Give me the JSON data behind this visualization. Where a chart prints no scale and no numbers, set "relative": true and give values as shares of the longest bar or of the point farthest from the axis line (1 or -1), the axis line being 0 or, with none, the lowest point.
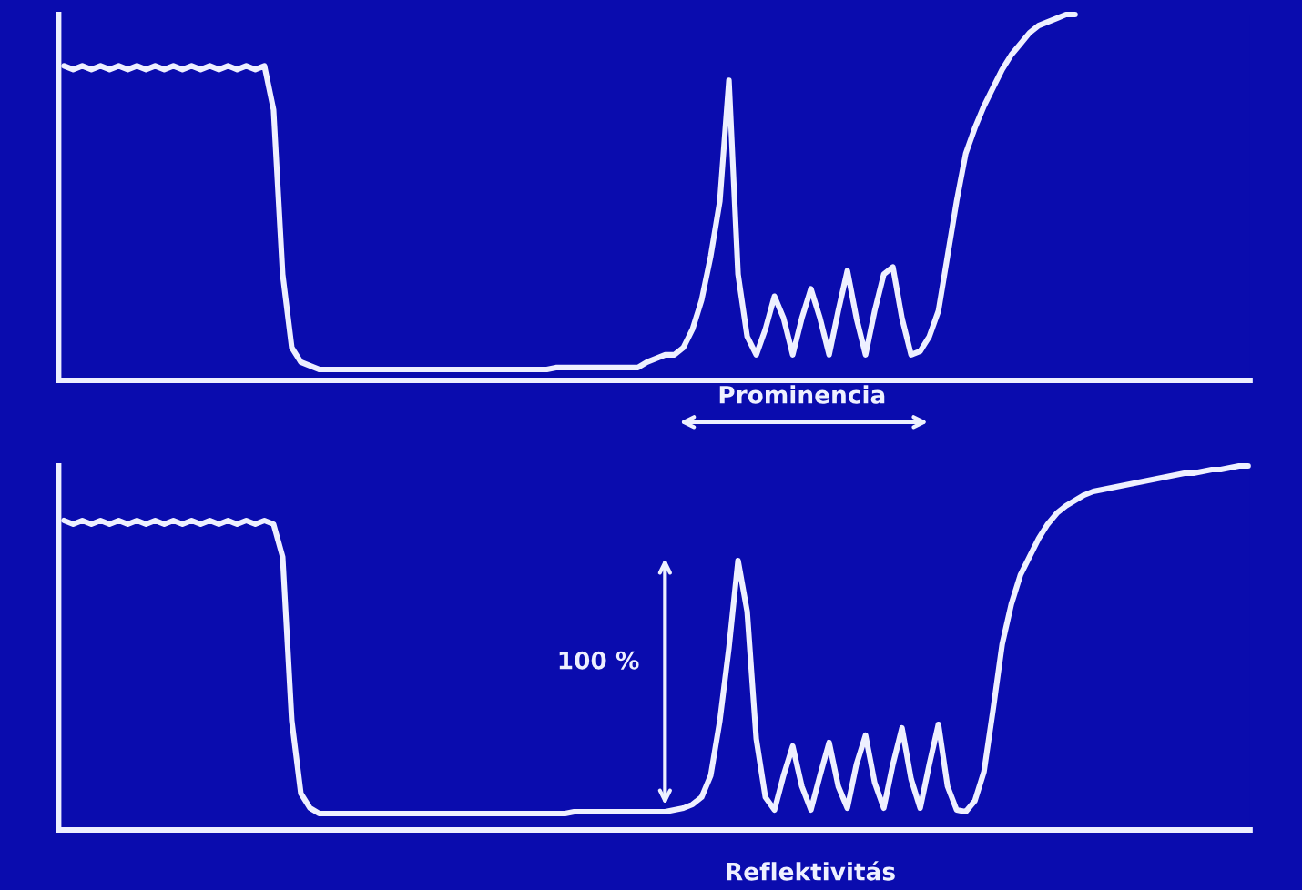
{
  "chart_data": [
    {
      "type": "line",
      "relative": true,
      "tick_labels": false,
      "categories": [
        null,
        null,
        null,
        null,
        null,
        null,
        null,
        null,
        null,
        null,
        null,
        null,
        null,
        null,
        null,
        null,
        null,
        null,
        null,
        null,
        null,
        null,
        null,
        null,
        null,
        null,
        null,
        null,
        null,
        null,
        null,
        null,
        null,
        null,
        null,
        null,
        null,
        null,
        null,
        null,
        null,
        null,
        null,
        null,
        null,
        null,
        null,
        null,
        null,
        null,
        null,
        null,
        null,
        null,
        null,
        null,
        null,
        null,
        null,
        null,
        null,
        null,
        null,
        null,
        null,
        null,
        null,
        null,
        null,
        null,
        null,
        null,
        null,
        null,
        null,
        null,
        null,
        null,
        null,
        null,
        null,
        null,
        null,
        null,
        null,
        null,
        null,
        null,
        null,
        null,
        null,
        null,
        null,
        null,
        null,
        null,
        null,
        null,
        null,
        null,
        null,
        null,
        null,
        null,
        null,
        null,
        null,
        null,
        null,
        null,
        null,
        null,
        null,
        null,
        null,
        null,
        null,
        null,
        null,
        null,
        null,
        null,
        null,
        null,
        null,
        null,
        null,
        null,
        null,
        null,
        null
      ],
      "series": [
        {
          "color": "#eef0ff",
          "values": [
            0.86,
            0.85,
            0.86,
            0.85,
            0.86,
            0.85,
            0.86,
            0.85,
            0.86,
            0.85,
            0.86,
            0.85,
            0.86,
            0.85,
            0.86,
            0.85,
            0.86,
            0.85,
            0.86,
            0.85,
            0.86,
            0.85,
            0.86,
            0.74,
            0.29,
            0.09,
            0.05,
            0.04,
            0.03,
            0.03,
            0.03,
            0.03,
            0.03,
            0.03,
            0.03,
            0.03,
            0.03,
            0.03,
            0.03,
            0.03,
            0.03,
            0.03,
            0.03,
            0.03,
            0.03,
            0.03,
            0.03,
            0.03,
            0.03,
            0.03,
            0.03,
            0.03,
            0.03,
            0.03,
            0.035,
            0.035,
            0.035,
            0.035,
            0.035,
            0.035,
            0.035,
            0.035,
            0.035,
            0.035,
            0.05,
            0.06,
            0.07,
            0.07,
            0.09,
            0.14,
            0.22,
            0.34,
            0.49,
            0.82,
            0.29,
            0.12,
            0.07,
            0.14,
            0.23,
            0.17,
            0.07,
            0.17,
            0.25,
            0.17,
            0.07,
            0.19,
            0.3,
            0.17,
            0.07,
            0.19,
            0.29,
            0.31,
            0.17,
            0.07,
            0.08,
            0.12,
            0.19,
            0.34,
            0.49,
            0.62,
            0.69,
            0.75,
            0.8,
            0.85,
            0.89,
            0.92,
            0.95,
            0.97,
            0.98,
            0.99,
            1.0,
            1.0,
            null,
            null,
            null,
            null,
            null,
            null,
            null,
            null,
            null,
            null,
            null,
            null,
            null,
            null,
            null,
            null,
            null,
            null,
            null
          ]
        }
      ],
      "annotations": [
        "Prominencia"
      ]
    },
    {
      "type": "line",
      "relative": true,
      "tick_labels": false,
      "categories": [
        null,
        null,
        null,
        null,
        null,
        null,
        null,
        null,
        null,
        null,
        null,
        null,
        null,
        null,
        null,
        null,
        null,
        null,
        null,
        null,
        null,
        null,
        null,
        null,
        null,
        null,
        null,
        null,
        null,
        null,
        null,
        null,
        null,
        null,
        null,
        null,
        null,
        null,
        null,
        null,
        null,
        null,
        null,
        null,
        null,
        null,
        null,
        null,
        null,
        null,
        null,
        null,
        null,
        null,
        null,
        null,
        null,
        null,
        null,
        null,
        null,
        null,
        null,
        null,
        null,
        null,
        null,
        null,
        null,
        null,
        null,
        null,
        null,
        null,
        null,
        null,
        null,
        null,
        null,
        null,
        null,
        null,
        null,
        null,
        null,
        null,
        null,
        null,
        null,
        null,
        null,
        null,
        null,
        null,
        null,
        null,
        null,
        null,
        null,
        null,
        null,
        null,
        null,
        null,
        null,
        null,
        null,
        null,
        null,
        null,
        null,
        null,
        null,
        null,
        null,
        null,
        null,
        null,
        null,
        null,
        null,
        null,
        null,
        null,
        null,
        null,
        null,
        null,
        null,
        null,
        null
      ],
      "series": [
        {
          "color": "#eef0ff",
          "values": [
            0.85,
            0.84,
            0.85,
            0.84,
            0.85,
            0.84,
            0.85,
            0.84,
            0.85,
            0.84,
            0.85,
            0.84,
            0.85,
            0.84,
            0.85,
            0.84,
            0.85,
            0.84,
            0.85,
            0.84,
            0.85,
            0.84,
            0.85,
            0.84,
            0.75,
            0.3,
            0.1,
            0.06,
            0.045,
            0.045,
            0.045,
            0.045,
            0.045,
            0.045,
            0.045,
            0.045,
            0.045,
            0.045,
            0.045,
            0.045,
            0.045,
            0.045,
            0.045,
            0.045,
            0.045,
            0.045,
            0.045,
            0.045,
            0.045,
            0.045,
            0.045,
            0.045,
            0.045,
            0.045,
            0.045,
            0.045,
            0.05,
            0.05,
            0.05,
            0.05,
            0.05,
            0.05,
            0.05,
            0.05,
            0.05,
            0.05,
            0.05,
            0.055,
            0.06,
            0.07,
            0.09,
            0.15,
            0.3,
            0.5,
            0.74,
            0.6,
            0.25,
            0.09,
            0.055,
            0.15,
            0.23,
            0.12,
            0.055,
            0.15,
            0.24,
            0.12,
            0.06,
            0.18,
            0.26,
            0.13,
            0.06,
            0.18,
            0.28,
            0.14,
            0.06,
            0.18,
            0.29,
            0.12,
            0.055,
            0.05,
            0.08,
            0.16,
            0.33,
            0.51,
            0.62,
            0.7,
            0.75,
            0.8,
            0.84,
            0.87,
            0.89,
            0.905,
            0.92,
            0.93,
            0.935,
            0.94,
            0.945,
            0.95,
            0.955,
            0.96,
            0.965,
            0.97,
            0.975,
            0.98,
            0.98,
            0.985,
            0.99,
            0.99,
            0.995,
            1.0,
            1.0
          ]
        }
      ],
      "annotations": [
        "100 %",
        "Reflektivitás"
      ]
    }
  ]
}
